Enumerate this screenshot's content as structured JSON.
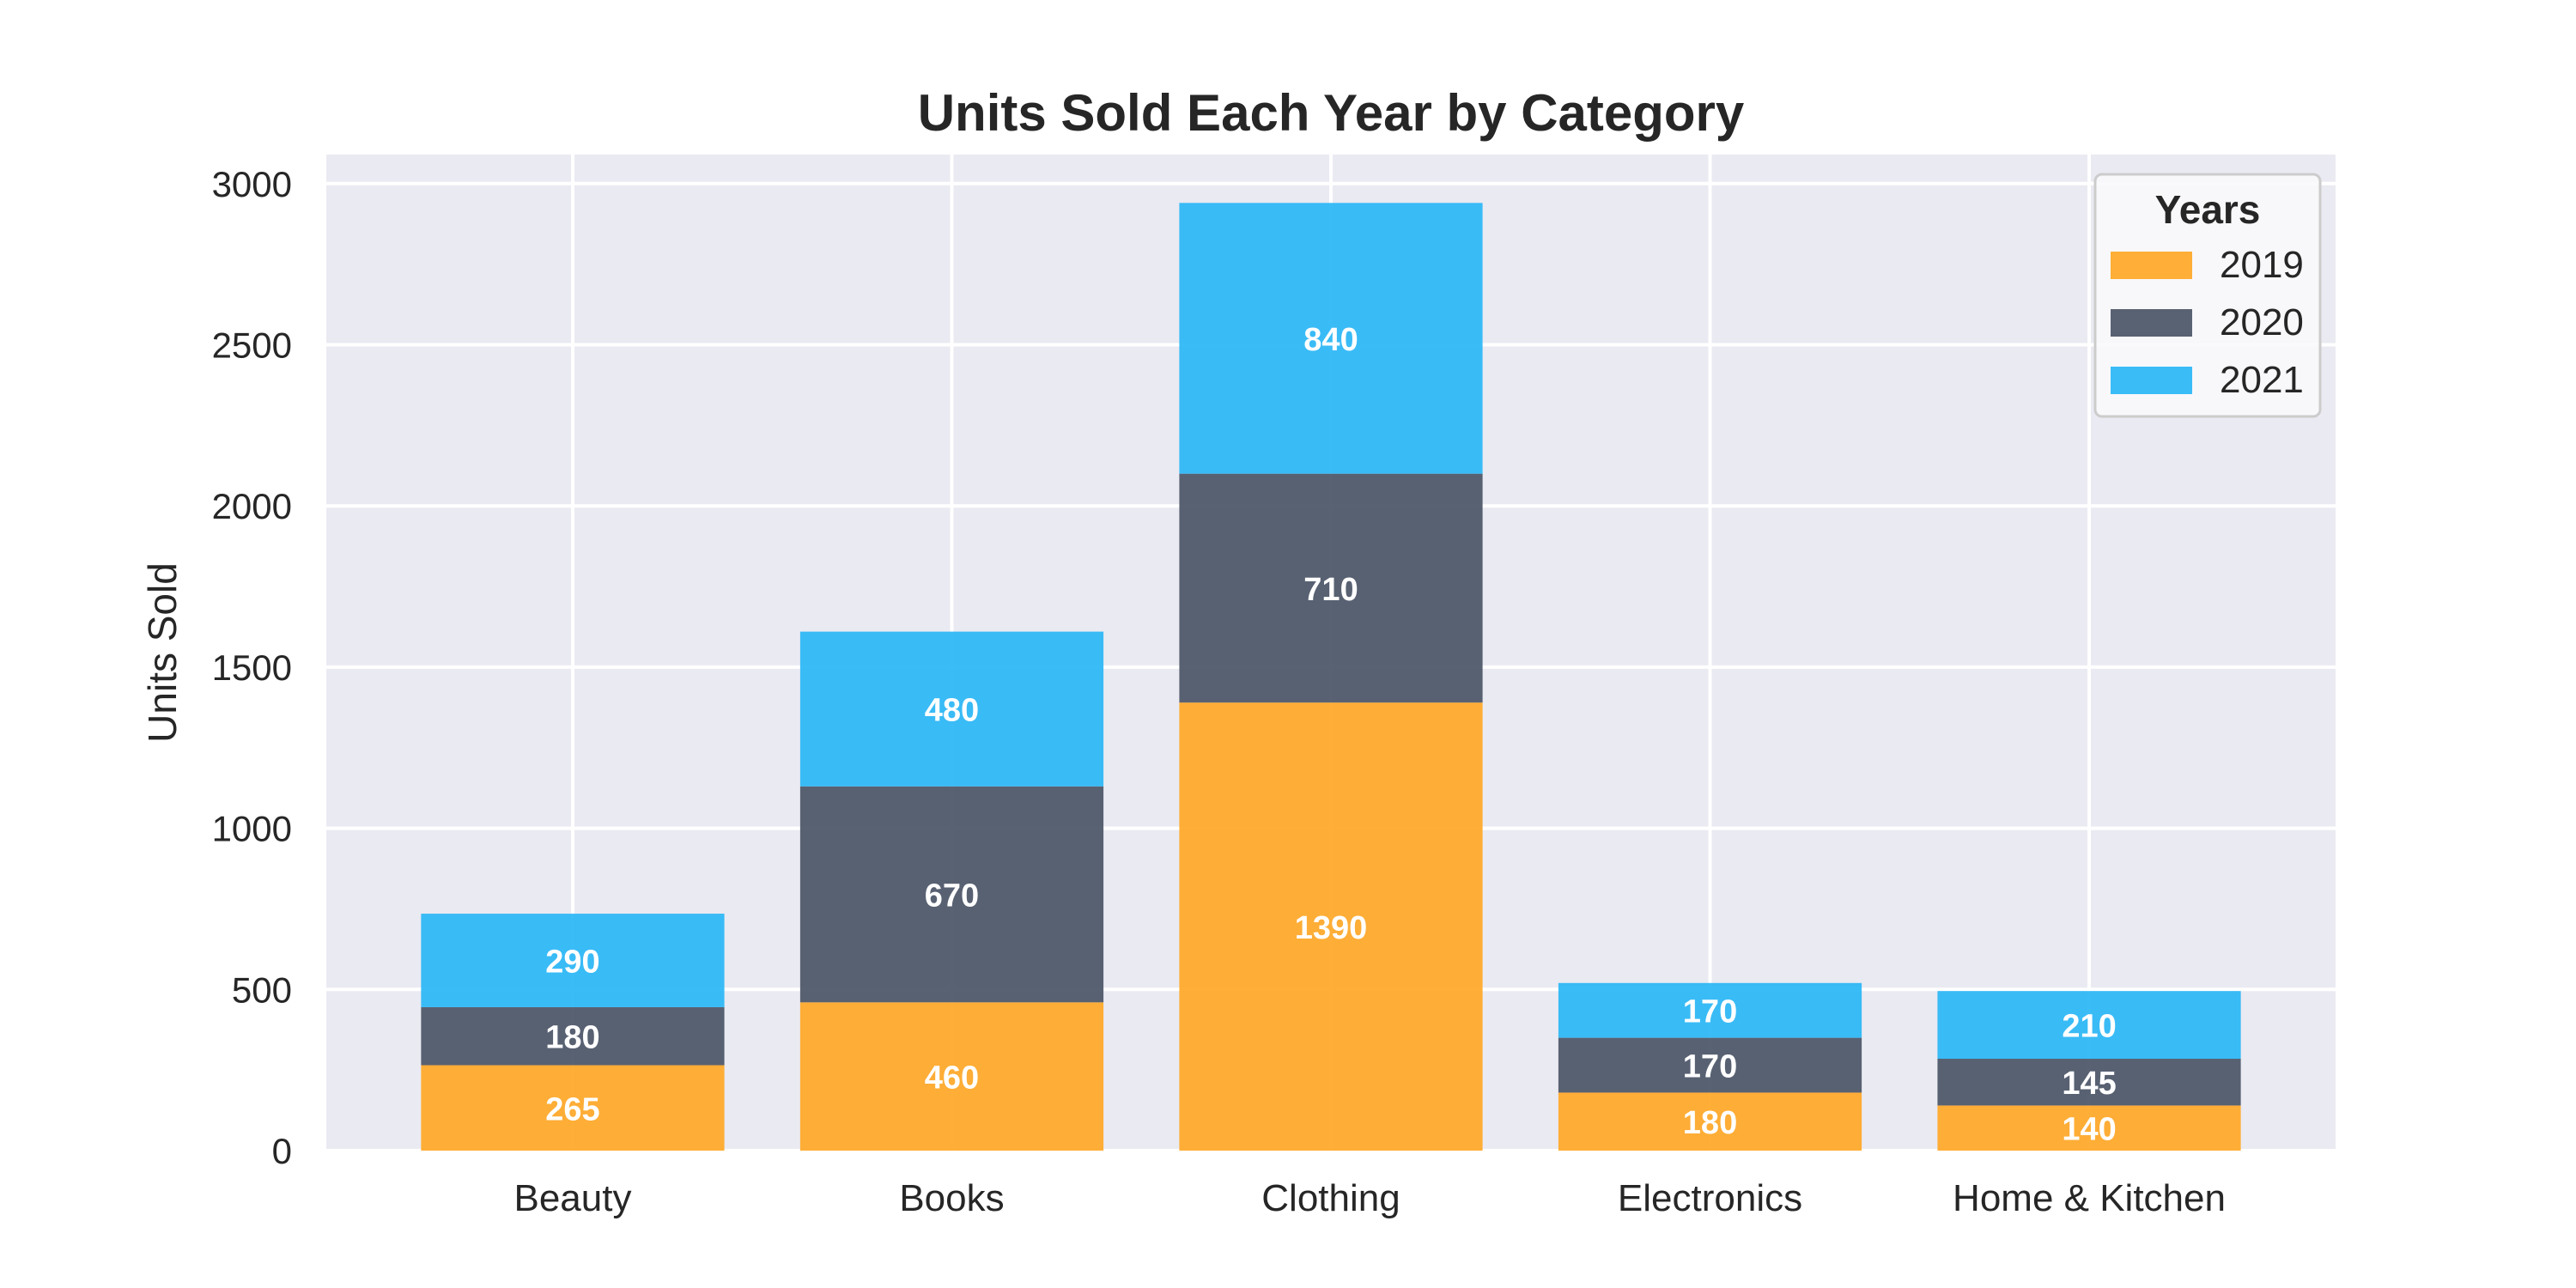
{
  "chart_data": {
    "type": "bar",
    "stacked": true,
    "title": "Units Sold Each Year by Category",
    "xlabel": "",
    "ylabel": "Units Sold",
    "categories": [
      "Beauty",
      "Books",
      "Clothing",
      "Electronics",
      "Home & Kitchen"
    ],
    "series": [
      {
        "name": "2019",
        "color": "#FFA726",
        "values": [
          265,
          460,
          1390,
          180,
          140
        ]
      },
      {
        "name": "2020",
        "color": "#4B5567",
        "values": [
          180,
          670,
          710,
          170,
          145
        ]
      },
      {
        "name": "2021",
        "color": "#29B6F6",
        "values": [
          290,
          480,
          840,
          170,
          210
        ]
      }
    ],
    "ylim": [
      0,
      3090
    ],
    "yticks": [
      0,
      500,
      1000,
      1500,
      2000,
      2500,
      3000
    ],
    "grid": true,
    "legend": {
      "title": "Years",
      "position": "top-right"
    },
    "colors": {
      "background": "#EAEAF2",
      "grid": "#FFFFFF",
      "label_text": "#FFFFFF"
    }
  }
}
